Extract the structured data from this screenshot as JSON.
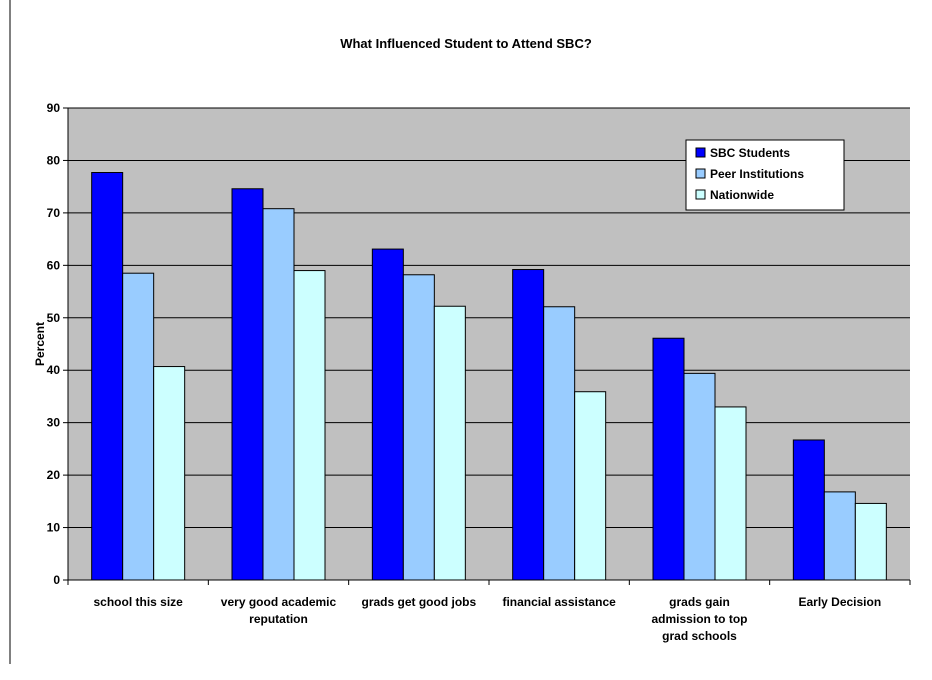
{
  "colors": {
    "chart_area_bg": "#ffffff",
    "plot_bg": "#c0c0c0",
    "gridline": "#000000",
    "bar_outline": "#000000",
    "sbc": "#0000ff",
    "peer": "#99ccff",
    "nation": "#ccffff"
  },
  "chart_data": {
    "type": "bar",
    "title": "What Influenced Student to Attend SBC?",
    "xlabel": "",
    "ylabel": "Percent",
    "ylim": [
      0,
      90
    ],
    "yticks": [
      0,
      10,
      20,
      30,
      40,
      50,
      60,
      70,
      80,
      90
    ],
    "grid": true,
    "legend_position": "top-right",
    "categories": [
      [
        "school this size"
      ],
      [
        "very good academic",
        "reputation"
      ],
      [
        "grads get good jobs"
      ],
      [
        "financial assistance"
      ],
      [
        "grads gain",
        "admission to top",
        "grad schools"
      ],
      [
        "Early Decision"
      ]
    ],
    "series": [
      {
        "name": "SBC Students",
        "color_key": "sbc",
        "values": [
          77.7,
          74.6,
          63.1,
          59.2,
          46.1,
          26.7
        ]
      },
      {
        "name": "Peer Institutions",
        "color_key": "peer",
        "values": [
          58.5,
          70.8,
          58.2,
          52.1,
          39.4,
          16.8
        ]
      },
      {
        "name": "Nationwide",
        "color_key": "nation",
        "values": [
          40.7,
          59.0,
          52.2,
          35.9,
          33.0,
          14.6
        ]
      }
    ]
  }
}
